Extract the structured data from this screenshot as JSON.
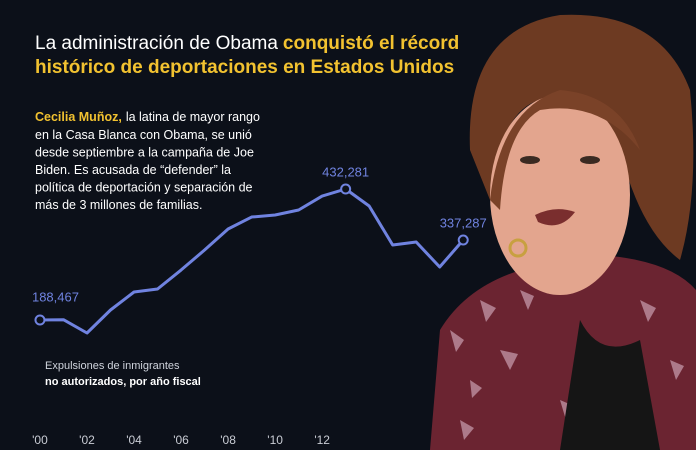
{
  "chart_data": {
    "type": "line",
    "title_line1_plain": "La administración de Obama",
    "title_line1_highlight": "conquistó el récord",
    "title_line2_highlight": "histórico de deportaciones en Estados Unidos",
    "note_highlight": "Cecilia Muñoz,",
    "note_lines": [
      "la latina de mayor rango",
      "en la Casa Blanca con Obama, se unió",
      "desde septiembre a la campaña de Joe",
      "Biden. Es acusada de “defender” la",
      "política de deportación y separación de",
      "más de 3 millones de familias."
    ],
    "caption_line1": "Expulsiones de inmigrantes",
    "caption_line2": "no autorizados, por año fiscal",
    "x": [
      2000,
      2001,
      2002,
      2003,
      2004,
      2005,
      2006,
      2007,
      2008,
      2009,
      2010,
      2011,
      2012,
      2013,
      2014,
      2015,
      2016,
      2017,
      2018
    ],
    "series": [
      {
        "color": "#7083e0",
        "values": [
          188467,
          189000,
          164300,
          207100,
          240600,
          246200,
          281500,
          318700,
          357800,
          380100,
          383900,
          393200,
          419200,
          432281,
          400600,
          328100,
          333600,
          287100,
          337287
        ],
        "value_labels": [
          "188,467",
          null,
          null,
          null,
          null,
          null,
          null,
          null,
          null,
          null,
          null,
          null,
          null,
          "432,281",
          null,
          null,
          null,
          null,
          "337,287"
        ]
      }
    ],
    "xlim": [
      1998.3,
      2027.9
    ],
    "xticks": [
      {
        "value": 2000,
        "label": "'00"
      },
      {
        "value": 2002,
        "label": "'02"
      },
      {
        "value": 2004,
        "label": "'04"
      },
      {
        "value": 2006,
        "label": "'06"
      },
      {
        "value": 2008,
        "label": "'08"
      },
      {
        "value": 2010,
        "label": "'10"
      },
      {
        "value": 2012,
        "label": "'12"
      }
    ]
  }
}
